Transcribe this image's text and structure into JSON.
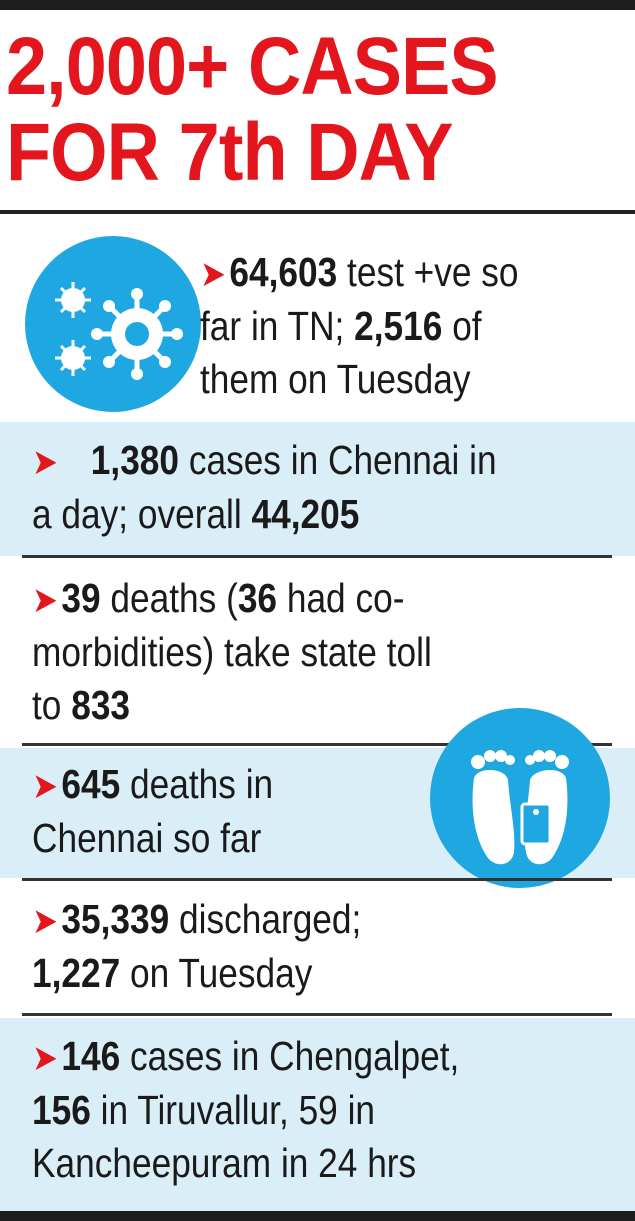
{
  "headline": {
    "line1": "2,000+ CASES",
    "line2": "FOR 7th DAY"
  },
  "arrow": "➤",
  "items": [
    {
      "bold1": "64,603",
      "t1": " test +ve so",
      "t2": "far in TN; ",
      "bold2": "2,516",
      "t3": " of",
      "t4": "them on Tuesday",
      "icon": "virus-icon"
    },
    {
      "bold1": "1,380",
      "t1": " cases in Chennai in",
      "t2": "a day; overall ",
      "bold2": "44,205"
    },
    {
      "bold1": "39",
      "t1": " deaths (",
      "bold2": "36",
      "t2": " had co-",
      "t3": "morbidities) take state toll",
      "t4": "to ",
      "bold3": "833"
    },
    {
      "bold1": "645",
      "t1": " deaths in",
      "t2": "Chennai so far",
      "icon": "feet-toe-tag-icon"
    },
    {
      "bold1": "35,339",
      "t1": " discharged;",
      "bold2": "1,227",
      "t2": " on Tuesday"
    },
    {
      "bold1": "146",
      "t1": " cases in Chengalpet,",
      "bold2": "156",
      "t2": " in Tiruvallur, 59 in",
      "t3": "Kancheepuram in 24 hrs"
    }
  ],
  "colors": {
    "headline": "#e4161d",
    "arrow": "#e4161d",
    "shade": "#daeef8",
    "icon": "#1ea7e1"
  }
}
